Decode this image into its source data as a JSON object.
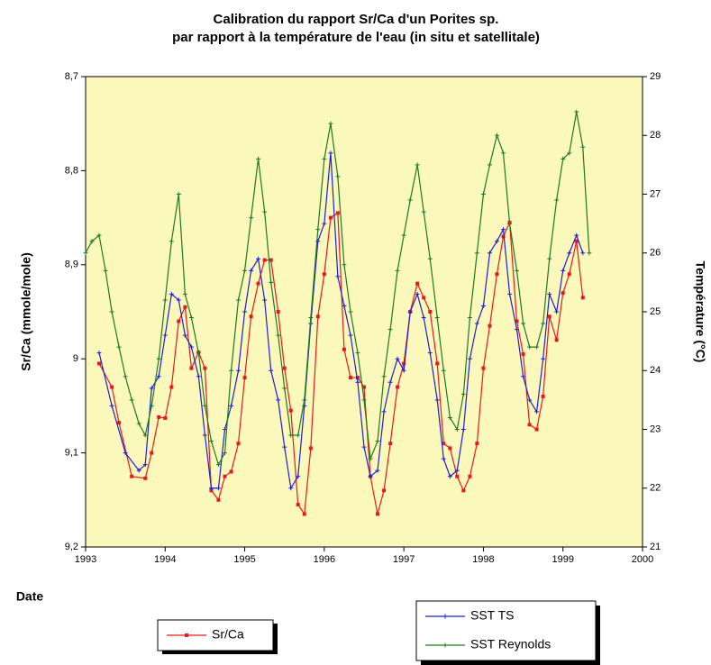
{
  "chart_data": {
    "type": "line",
    "title": [
      "Calibration du rapport Sr/Ca d'un Porites sp.",
      "par rapport à la température de l'eau (in situ et satellitale)"
    ],
    "x_label": "Date",
    "y_label": "Sr/Ca (mmole/mole)",
    "y2_label": "Température (°C)",
    "xlim": [
      1993,
      2000
    ],
    "xticks": [
      1993,
      1994,
      1995,
      1996,
      1997,
      1998,
      1999,
      2000
    ],
    "ylim": [
      9.2,
      8.7
    ],
    "yticks": [
      {
        "value": 8.7,
        "label": "8,7"
      },
      {
        "value": 8.8,
        "label": "8,8"
      },
      {
        "value": 8.9,
        "label": "8,9"
      },
      9,
      {
        "value": 9.1,
        "label": "9,1"
      },
      {
        "value": 9.2,
        "label": "9,2"
      }
    ],
    "y2lim": [
      21,
      29
    ],
    "y2ticks": [
      21,
      22,
      23,
      24,
      25,
      26,
      27,
      28,
      29
    ],
    "background": "#fbf8bb",
    "series": [
      {
        "name": "Sr/Ca",
        "color": "#e8191c",
        "marker": "square",
        "x": [
          1993.17,
          1993.33,
          1993.42,
          1993.58,
          1993.75,
          1993.83,
          1993.92,
          1994.0,
          1994.08,
          1994.17,
          1994.25,
          1994.33,
          1994.42,
          1994.5,
          1994.58,
          1994.67,
          1994.75,
          1994.83,
          1994.92,
          1995.0,
          1995.08,
          1995.17,
          1995.25,
          1995.33,
          1995.42,
          1995.5,
          1995.58,
          1995.67,
          1995.75,
          1995.83,
          1995.92,
          1996.0,
          1996.08,
          1996.17,
          1996.25,
          1996.33,
          1996.42,
          1996.5,
          1996.58,
          1996.67,
          1996.75,
          1996.83,
          1996.92,
          1997.0,
          1997.08,
          1997.17,
          1997.25,
          1997.33,
          1997.42,
          1997.5,
          1997.58,
          1997.67,
          1997.75,
          1997.83,
          1997.92,
          1998.0,
          1998.08,
          1998.17,
          1998.25,
          1998.33,
          1998.42,
          1998.5,
          1998.58,
          1998.67,
          1998.75,
          1998.83,
          1998.92,
          1999.0,
          1999.08,
          1999.17,
          1999.25
        ],
        "values": [
          9.005,
          9.03,
          9.068,
          9.125,
          9.127,
          9.1,
          9.062,
          9.063,
          9.03,
          8.96,
          8.945,
          9.01,
          8.993,
          9.01,
          9.14,
          9.15,
          9.125,
          9.12,
          9.09,
          9.02,
          8.955,
          8.92,
          8.895,
          8.895,
          8.95,
          9.01,
          9.055,
          9.155,
          9.165,
          9.095,
          8.955,
          8.91,
          8.85,
          8.845,
          8.99,
          9.02,
          9.02,
          9.03,
          9.125,
          9.165,
          9.14,
          9.09,
          9.03,
          9.005,
          8.95,
          8.92,
          8.935,
          8.95,
          9.005,
          9.09,
          9.095,
          9.125,
          9.14,
          9.125,
          9.09,
          9.01,
          8.965,
          8.91,
          8.87,
          8.855,
          8.96,
          8.995,
          9.07,
          9.075,
          9.04,
          8.955,
          8.98,
          8.93,
          8.91,
          8.875,
          8.935
        ]
      },
      {
        "name": "SST TS",
        "color": "#1f1fd6",
        "axis": "y2",
        "marker": "plus",
        "x": [
          1993.17,
          1993.33,
          1993.5,
          1993.67,
          1993.75,
          1993.83,
          1993.92,
          1994.0,
          1994.08,
          1994.17,
          1994.25,
          1994.33,
          1994.42,
          1994.5,
          1994.58,
          1994.67,
          1994.75,
          1994.83,
          1994.92,
          1995.0,
          1995.08,
          1995.17,
          1995.25,
          1995.33,
          1995.42,
          1995.5,
          1995.58,
          1995.67,
          1995.75,
          1995.83,
          1995.92,
          1996.0,
          1996.08,
          1996.17,
          1996.25,
          1996.33,
          1996.42,
          1996.5,
          1996.58,
          1996.67,
          1996.75,
          1996.83,
          1996.92,
          1997.0,
          1997.08,
          1997.17,
          1997.25,
          1997.33,
          1997.42,
          1997.5,
          1997.58,
          1997.67,
          1997.75,
          1997.83,
          1997.92,
          1998.0,
          1998.08,
          1998.17,
          1998.25,
          1998.33,
          1998.42,
          1998.5,
          1998.58,
          1998.67,
          1998.75,
          1998.83,
          1998.92,
          1999.0,
          1999.08,
          1999.17,
          1999.25
        ],
        "values": [
          24.3,
          23.4,
          22.6,
          22.3,
          22.4,
          23.7,
          23.9,
          24.6,
          25.3,
          25.2,
          24.6,
          24.4,
          23.9,
          22.9,
          22.0,
          22.0,
          23.0,
          23.4,
          24.0,
          25.0,
          25.7,
          25.9,
          25.2,
          24.0,
          23.5,
          22.7,
          22.0,
          22.2,
          23.4,
          24.8,
          26.2,
          26.5,
          27.7,
          25.6,
          25.1,
          24.6,
          23.8,
          22.7,
          22.2,
          22.3,
          23.3,
          23.8,
          24.2,
          24.0,
          25.0,
          25.3,
          24.9,
          24.3,
          23.5,
          22.5,
          22.2,
          22.3,
          23.0,
          24.2,
          24.8,
          25.1,
          26.0,
          26.2,
          26.4,
          25.3,
          24.7,
          23.9,
          23.5,
          23.3,
          24.2,
          25.3,
          25.0,
          25.7,
          26.0,
          26.3,
          26.0
        ]
      },
      {
        "name": "SST Reynolds",
        "color": "#1f7a1f",
        "axis": "y2",
        "marker": "plus",
        "x": [
          1993.0,
          1993.08,
          1993.17,
          1993.25,
          1993.33,
          1993.42,
          1993.5,
          1993.58,
          1993.67,
          1993.75,
          1993.83,
          1993.92,
          1994.0,
          1994.08,
          1994.17,
          1994.25,
          1994.33,
          1994.42,
          1994.5,
          1994.58,
          1994.67,
          1994.75,
          1994.83,
          1994.92,
          1995.0,
          1995.08,
          1995.17,
          1995.25,
          1995.33,
          1995.42,
          1995.5,
          1995.58,
          1995.67,
          1995.75,
          1995.83,
          1995.92,
          1996.0,
          1996.08,
          1996.17,
          1996.25,
          1996.33,
          1996.42,
          1996.5,
          1996.58,
          1996.67,
          1996.75,
          1996.83,
          1996.92,
          1997.0,
          1997.08,
          1997.17,
          1997.25,
          1997.33,
          1997.42,
          1997.5,
          1997.58,
          1997.67,
          1997.75,
          1997.83,
          1997.92,
          1998.0,
          1998.08,
          1998.17,
          1998.25,
          1998.33,
          1998.42,
          1998.5,
          1998.58,
          1998.67,
          1998.75,
          1998.83,
          1998.92,
          1999.0,
          1999.08,
          1999.17,
          1999.25,
          1999.33
        ],
        "values": [
          26.0,
          26.2,
          26.3,
          25.7,
          25.0,
          24.4,
          23.9,
          23.5,
          23.1,
          22.9,
          23.4,
          24.2,
          25.2,
          26.2,
          27.0,
          25.3,
          24.9,
          24.3,
          23.4,
          22.8,
          22.4,
          22.6,
          24.0,
          25.2,
          25.7,
          26.6,
          27.6,
          26.7,
          25.5,
          24.6,
          23.7,
          22.9,
          22.9,
          23.5,
          24.9,
          26.4,
          27.6,
          28.2,
          27.3,
          25.8,
          25.0,
          24.3,
          23.5,
          22.5,
          22.8,
          23.9,
          24.7,
          25.7,
          26.3,
          26.9,
          27.5,
          26.7,
          25.9,
          24.9,
          24.0,
          23.2,
          23.0,
          23.6,
          24.9,
          26.0,
          27.0,
          27.5,
          28.0,
          27.7,
          26.5,
          25.7,
          24.8,
          24.4,
          24.4,
          24.8,
          25.9,
          26.9,
          27.6,
          27.7,
          28.4,
          27.8,
          26.0
        ]
      }
    ]
  }
}
